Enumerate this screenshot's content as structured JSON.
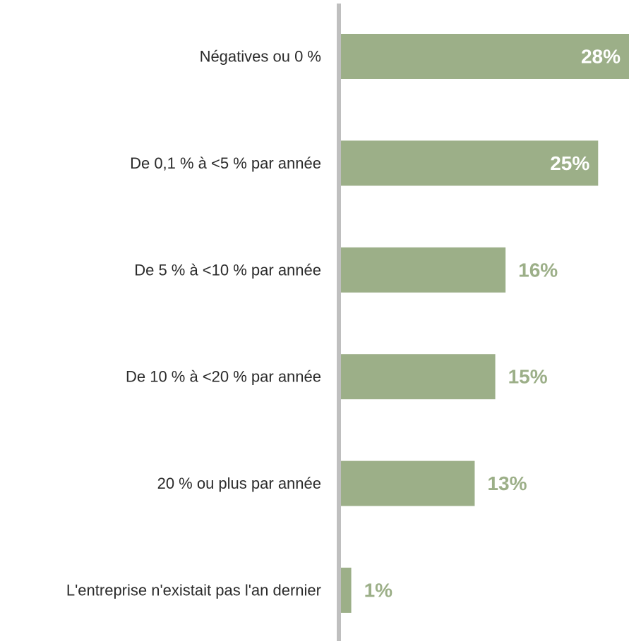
{
  "chart_data": {
    "type": "bar",
    "orientation": "horizontal",
    "categories": [
      "Négatives ou 0 %",
      "De 0,1 % à <5 % par année",
      "De 5 % à <10 % par année",
      "De 10 % à <20 % par année",
      "20 % ou plus par année",
      "L'entreprise n'existait pas l'an dernier"
    ],
    "values": [
      28,
      25,
      16,
      15,
      13,
      1
    ],
    "value_labels": [
      "28%",
      "25%",
      "16%",
      "15%",
      "13%",
      "1%"
    ],
    "xlim": [
      0,
      28
    ],
    "grid": false,
    "legend": "none",
    "colors": {
      "bar": "#9caf88",
      "axis": "#bfbfbf",
      "label_inside": "#ffffff",
      "label_outside": "#9caf88",
      "category_text": "#2b2b2b"
    }
  }
}
